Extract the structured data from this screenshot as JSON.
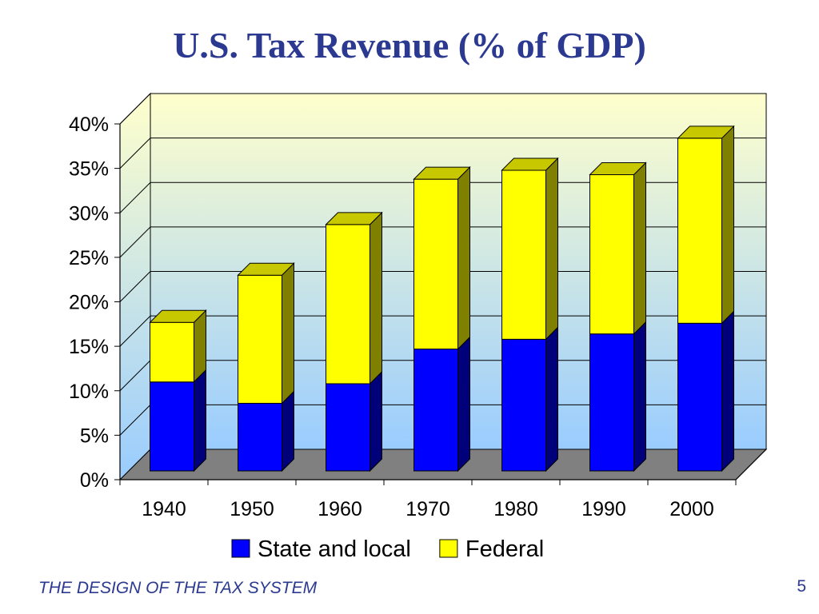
{
  "slide": {
    "title": "U.S. Tax Revenue (% of GDP)",
    "footer": "THE DESIGN OF THE TAX SYSTEM",
    "page_number": "5"
  },
  "colors": {
    "title": "#2B3990",
    "state_and_local": "#0000FF",
    "federal": "#FFFF00",
    "wall_top": "#FFFFCC",
    "wall_bottom": "#99CCFF",
    "floor": "#808080"
  },
  "chart_data": {
    "type": "bar",
    "stacked": true,
    "three_d": true,
    "categories": [
      "1940",
      "1950",
      "1960",
      "1970",
      "1980",
      "1990",
      "2000"
    ],
    "series": [
      {
        "name": "State and local",
        "color": "#0000FF",
        "values": [
          10,
          7.6,
          9.8,
          13.7,
          14.8,
          15.4,
          16.6
        ]
      },
      {
        "name": "Federal",
        "color": "#FFFF00",
        "values": [
          6.7,
          14.4,
          17.9,
          19.1,
          19.0,
          17.9,
          20.8
        ]
      }
    ],
    "ylim": [
      0,
      40
    ],
    "yticks": [
      "0%",
      "5%",
      "10%",
      "15%",
      "20%",
      "25%",
      "30%",
      "35%",
      "40%"
    ],
    "xlabel": "",
    "ylabel": "",
    "grid": true,
    "legend_position": "bottom"
  }
}
